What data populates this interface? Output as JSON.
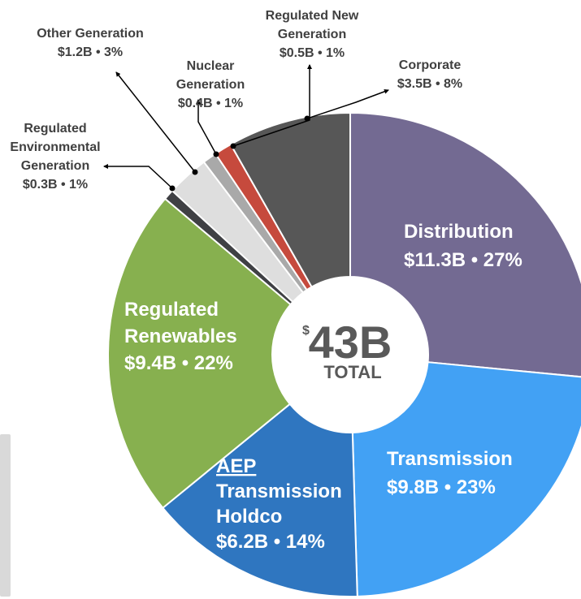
{
  "chart_data": {
    "type": "pie",
    "style": "donut",
    "center": {
      "currency": "$",
      "value": "43B",
      "label": "TOTAL"
    },
    "slices": [
      {
        "name": "Distribution",
        "value_label": "$11.3B • 27%",
        "value": 11.3,
        "percent": 27,
        "color": "#736a92"
      },
      {
        "name": "Transmission",
        "value_label": "$9.8B • 23%",
        "value": 9.8,
        "percent": 23,
        "color": "#42a1f4"
      },
      {
        "name": "AEP Transmission Holdco",
        "name_lines": [
          "AEP",
          "Transmission",
          "Holdco"
        ],
        "value_label": "$6.2B • 14%",
        "value": 6.2,
        "percent": 14,
        "color": "#2f76c0"
      },
      {
        "name": "Regulated Renewables",
        "name_lines": [
          "Regulated",
          "Renewables"
        ],
        "value_label": "$9.4B • 22%",
        "value": 9.4,
        "percent": 22,
        "color": "#87b04f"
      },
      {
        "name": "Regulated Environmental Generation",
        "name_lines": [
          "Regulated",
          "Environmental",
          "Generation"
        ],
        "value_label": "$0.3B • 1%",
        "value": 0.3,
        "percent": 1,
        "color": "#3f4044"
      },
      {
        "name": "Other Generation",
        "name_lines": [
          "Other Generation"
        ],
        "value_label": "$1.2B • 3%",
        "value": 1.2,
        "percent": 3,
        "color": "#dedede"
      },
      {
        "name": "Nuclear Generation",
        "name_lines": [
          "Nuclear",
          "Generation"
        ],
        "value_label": "$0.4B • 1%",
        "value": 0.4,
        "percent": 1,
        "color": "#a9a9a9"
      },
      {
        "name": "Regulated New Generation",
        "name_lines": [
          "Regulated New",
          "Generation"
        ],
        "value_label": "$0.5B • 1%",
        "value": 0.5,
        "percent": 1,
        "color": "#c64a3d"
      },
      {
        "name": "Corporate",
        "name_lines": [
          "Corporate"
        ],
        "value_label": "$3.5B • 8%",
        "value": 3.5,
        "percent": 8,
        "color": "#575757"
      }
    ]
  }
}
